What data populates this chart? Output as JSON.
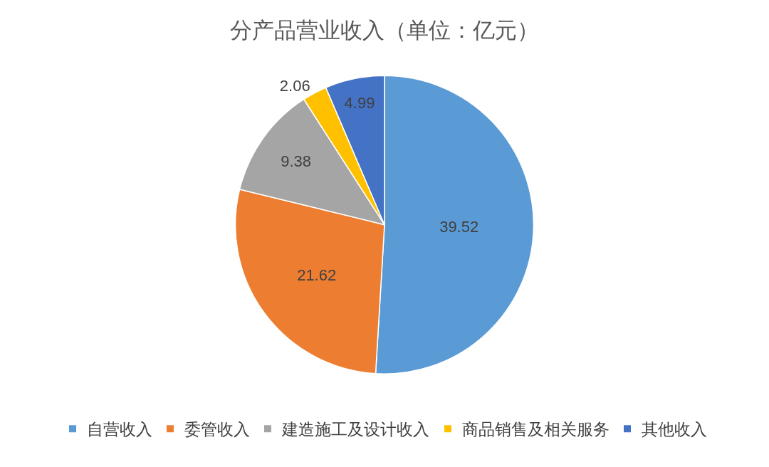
{
  "chart_data": {
    "type": "pie",
    "title": "分产品营业收入（单位：亿元）",
    "categories": [
      "自营收入",
      "委管收入",
      "建造施工及设计收入",
      "商品销售及相关服务",
      "其他收入"
    ],
    "values": [
      39.52,
      21.62,
      9.38,
      2.06,
      4.99
    ],
    "colors": [
      "#5b9bd5",
      "#ed7d31",
      "#a5a5a5",
      "#ffc000",
      "#4472c4"
    ],
    "data_labels": true,
    "legend": "bottom"
  }
}
